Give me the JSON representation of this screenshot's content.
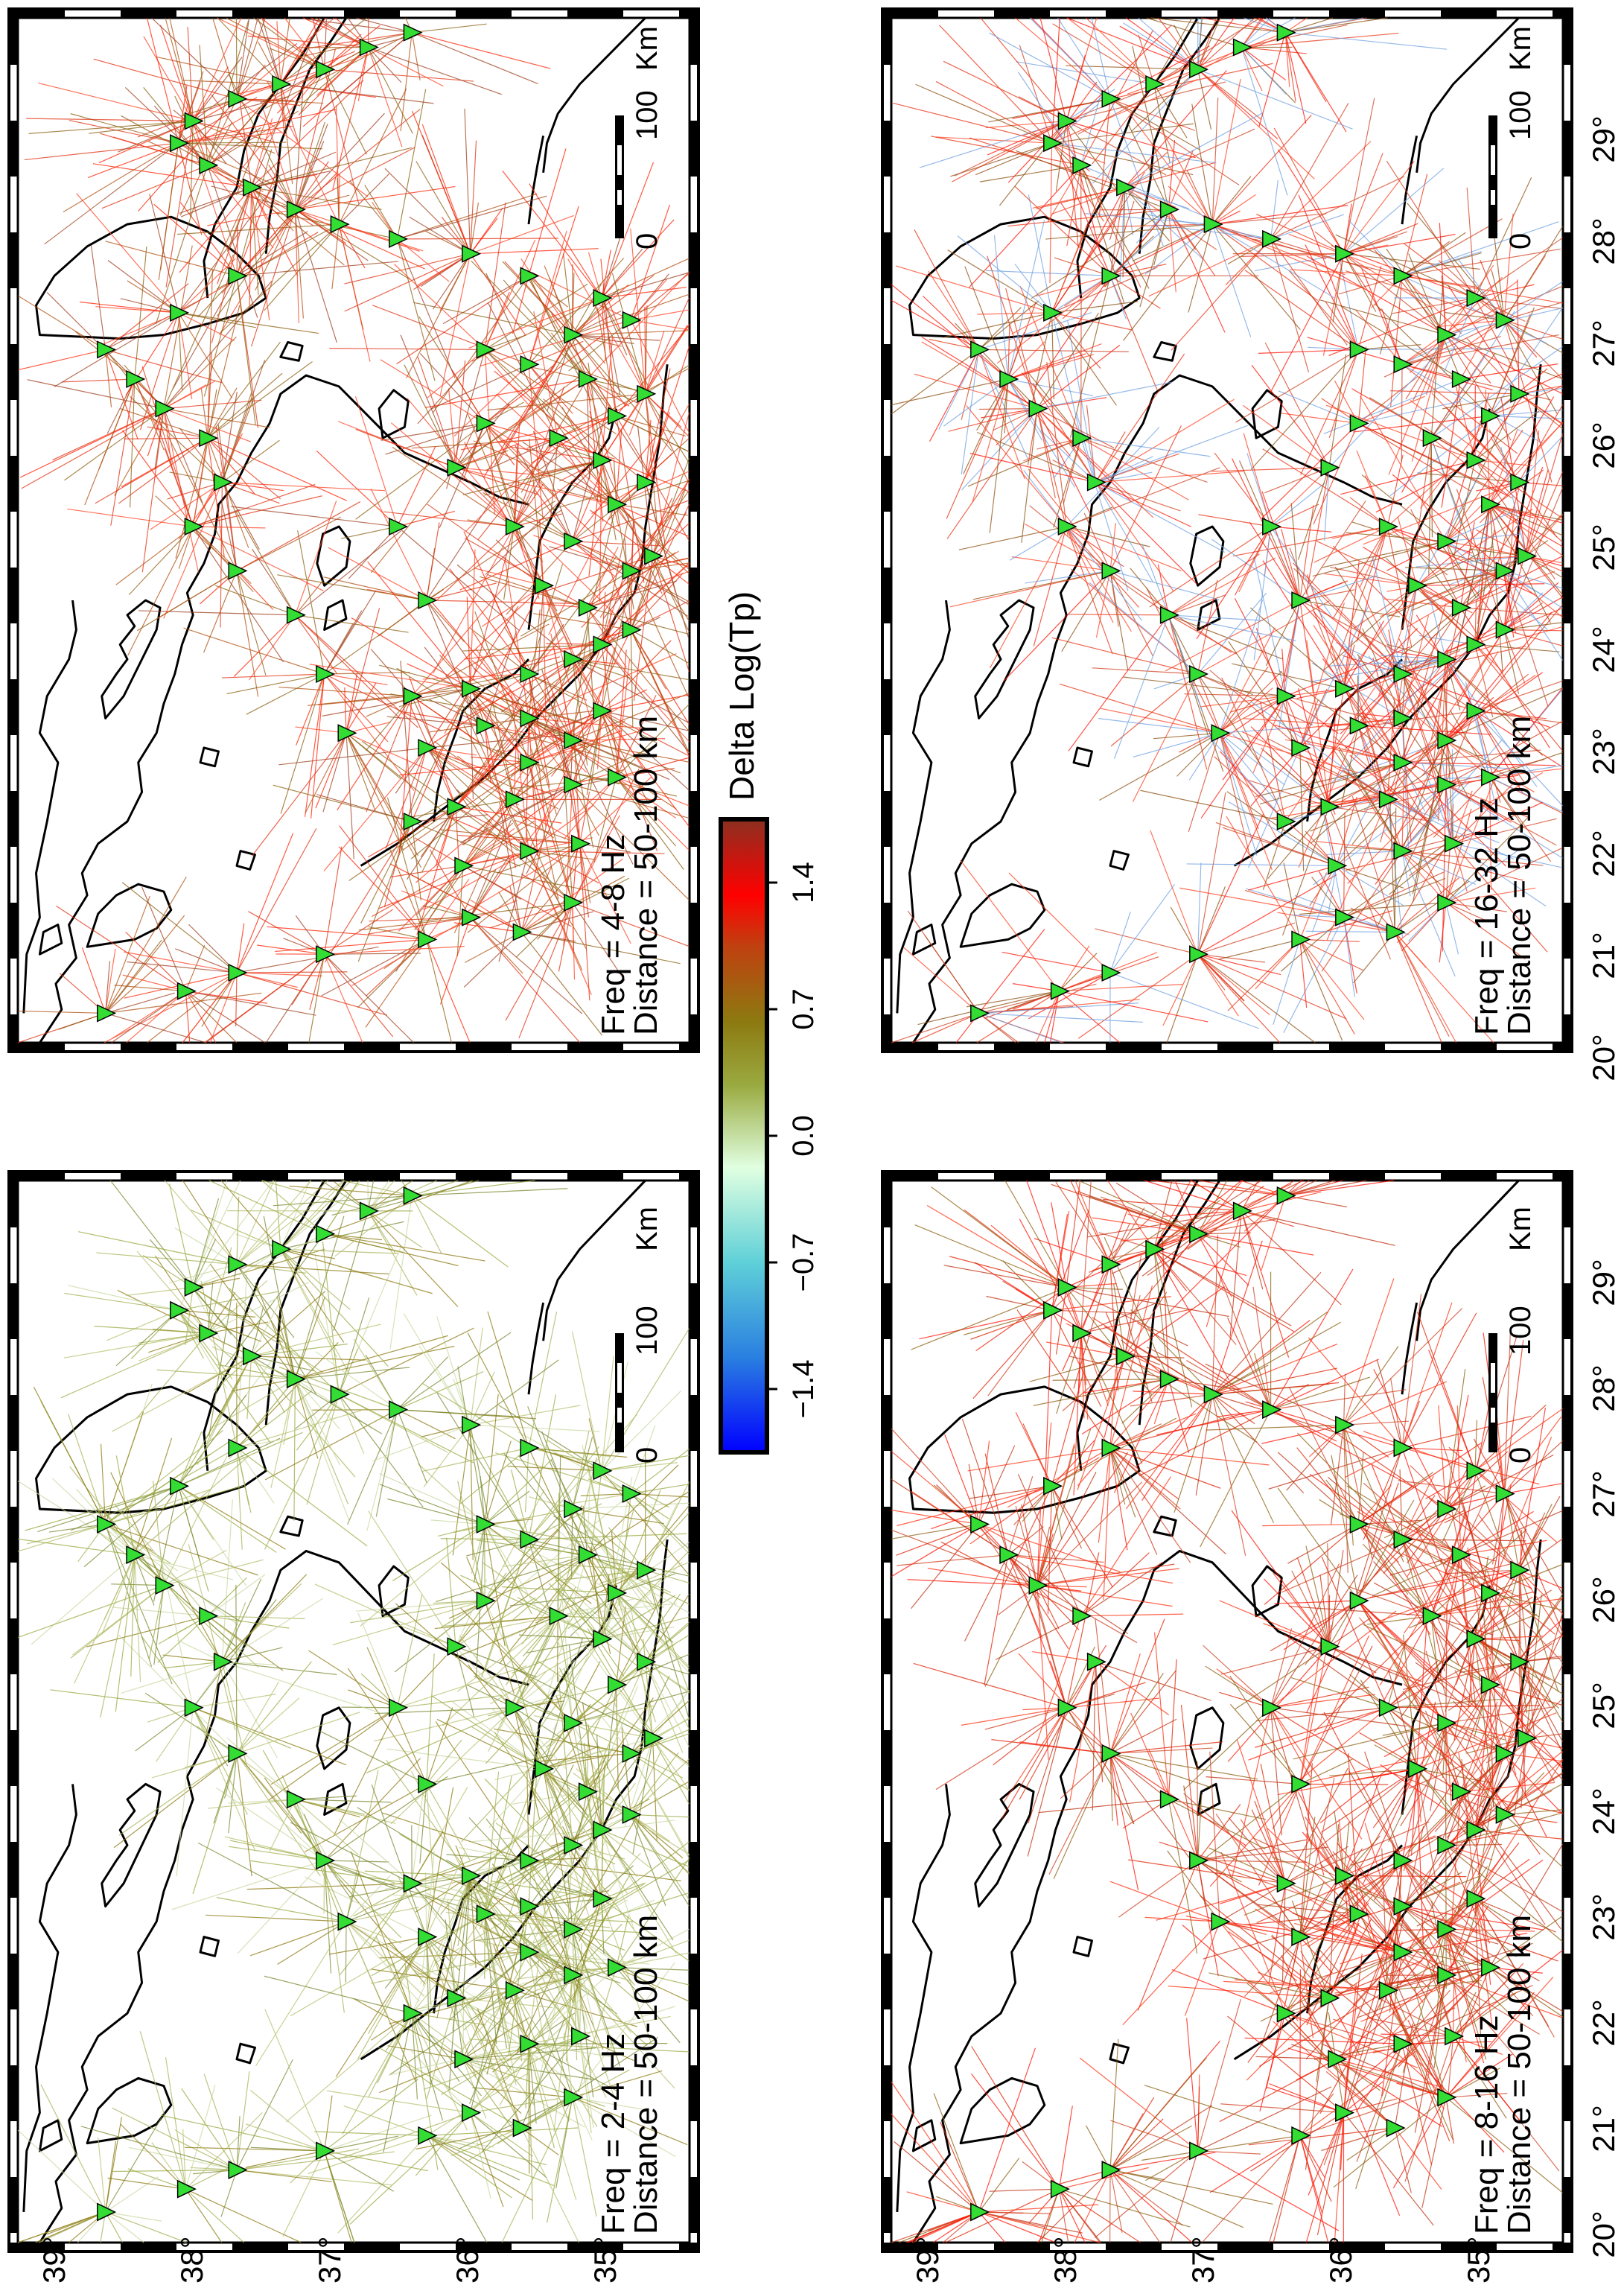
{
  "colors": {
    "frame": "#000000",
    "station": "#33dd33",
    "colorbar": [
      "#0000ff",
      "#2a7fe0",
      "#5fd0d8",
      "#e0ffe0",
      "#9aaa40",
      "#8c7a10",
      "#c04010",
      "#ff0000",
      "#8b3020"
    ]
  },
  "icons": {
    "station": "green-triangle"
  },
  "longitude_ticks": [
    "20°",
    "21°",
    "22°",
    "23°",
    "24°",
    "25°",
    "26°",
    "27°",
    "28°",
    "29°"
  ],
  "latitude_ticks": [
    "39°",
    "38°",
    "37°",
    "36°",
    "35°"
  ],
  "scalebar": {
    "labels": [
      "0",
      "100",
      "Km"
    ]
  },
  "colorbar": {
    "title": "Delta Log(Tp)",
    "ticks": [
      "-1.4",
      "-0.7",
      "0.0",
      "0.7",
      "1.4"
    ],
    "range": [
      -1.75,
      1.75
    ]
  },
  "panels": [
    {
      "id": "2-4",
      "freq_label": "Freq = 2-4 Hz",
      "dist_label": "Distance = 50-100 km",
      "palette": [
        "#9aaa40",
        "#a7b255",
        "#8c7a10",
        "#b8c070",
        "#7a8a30",
        "#c8d8a0"
      ]
    },
    {
      "id": "4-8",
      "freq_label": "Freq = 4-8 Hz",
      "dist_label": "Distance = 50-100 km",
      "palette": [
        "#e03010",
        "#ff2000",
        "#b05010",
        "#8c6010",
        "#ff4020",
        "#a04020"
      ]
    },
    {
      "id": "8-16",
      "freq_label": "Freq = 8-16 Hz",
      "dist_label": "Distance = 50-100 km",
      "palette": [
        "#ff1000",
        "#e02000",
        "#c03010",
        "#ff3010",
        "#d04020",
        "#8c6010"
      ]
    },
    {
      "id": "16-32",
      "freq_label": "Freq = 16-32 Hz",
      "dist_label": "Distance = 50-100 km",
      "palette": [
        "#ff1000",
        "#e83010",
        "#d04020",
        "#8c5010",
        "#ff4020",
        "#70a0e0"
      ]
    }
  ]
}
